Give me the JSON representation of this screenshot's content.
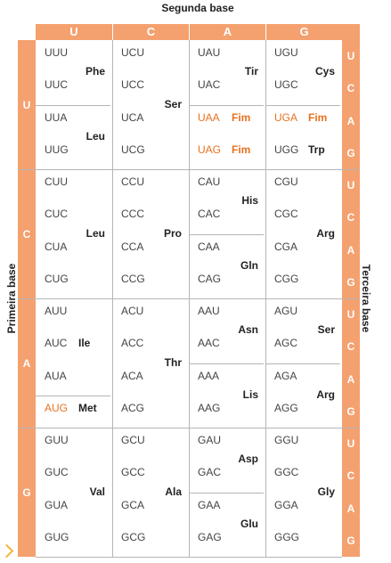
{
  "top_title": "Segunda base",
  "left_title": "Primeira base",
  "right_title": "Terceira base",
  "second_bases": [
    "U",
    "C",
    "A",
    "G"
  ],
  "first_bases": [
    "U",
    "C",
    "A",
    "G"
  ],
  "third_bases": [
    "U",
    "C",
    "A",
    "G"
  ],
  "blocks": [
    [
      {
        "codons": [
          "UUU",
          "UUC",
          "UUA",
          "UUG"
        ],
        "groups": [
          {
            "name": "Phe",
            "rows": [
              0,
              1
            ]
          },
          {
            "name": "Leu",
            "rows": [
              2,
              3
            ]
          }
        ]
      },
      {
        "codons": [
          "UCU",
          "UCC",
          "UCA",
          "UCG"
        ],
        "groups": [
          {
            "name": "Ser",
            "rows": [
              0,
              3
            ]
          }
        ]
      },
      {
        "codons": [
          "UAU",
          "UAC",
          "UAA",
          "UAG"
        ],
        "groups": [
          {
            "name": "Tir",
            "rows": [
              0,
              1
            ]
          },
          {
            "name": "Fim",
            "rows": [
              2,
              2
            ],
            "stop": true,
            "inline": true
          },
          {
            "name": "Fim",
            "rows": [
              3,
              3
            ],
            "stop": true,
            "inline": true
          }
        ]
      },
      {
        "codons": [
          "UGU",
          "UGC",
          "UGA",
          "UGG"
        ],
        "groups": [
          {
            "name": "Cys",
            "rows": [
              0,
              1
            ]
          },
          {
            "name": "Fim",
            "rows": [
              2,
              2
            ],
            "stop": true,
            "inline": true
          },
          {
            "name": "Trp",
            "rows": [
              3,
              3
            ],
            "inline": true
          }
        ]
      }
    ],
    [
      {
        "codons": [
          "CUU",
          "CUC",
          "CUA",
          "CUG"
        ],
        "groups": [
          {
            "name": "Leu",
            "rows": [
              0,
              3
            ]
          }
        ]
      },
      {
        "codons": [
          "CCU",
          "CCC",
          "CCA",
          "CCG"
        ],
        "groups": [
          {
            "name": "Pro",
            "rows": [
              0,
              3
            ]
          }
        ]
      },
      {
        "codons": [
          "CAU",
          "CAC",
          "CAA",
          "CAG"
        ],
        "groups": [
          {
            "name": "His",
            "rows": [
              0,
              1
            ]
          },
          {
            "name": "Gln",
            "rows": [
              2,
              3
            ]
          }
        ]
      },
      {
        "codons": [
          "CGU",
          "CGC",
          "CGA",
          "CGG"
        ],
        "groups": [
          {
            "name": "Arg",
            "rows": [
              0,
              3
            ]
          }
        ]
      }
    ],
    [
      {
        "codons": [
          "AUU",
          "AUC",
          "AUA",
          "AUG"
        ],
        "groups": [
          {
            "name": "Ile",
            "rows": [
              1,
              1
            ],
            "inline": true,
            "span": [
              0,
              2
            ]
          },
          {
            "name": "Met",
            "rows": [
              3,
              3
            ],
            "inline": true,
            "start": true
          }
        ]
      },
      {
        "codons": [
          "ACU",
          "ACC",
          "ACA",
          "ACG"
        ],
        "groups": [
          {
            "name": "Thr",
            "rows": [
              0,
              3
            ]
          }
        ]
      },
      {
        "codons": [
          "AAU",
          "AAC",
          "AAA",
          "AAG"
        ],
        "groups": [
          {
            "name": "Asn",
            "rows": [
              0,
              1
            ]
          },
          {
            "name": "Lis",
            "rows": [
              2,
              3
            ]
          }
        ]
      },
      {
        "codons": [
          "AGU",
          "AGC",
          "AGA",
          "AGG"
        ],
        "groups": [
          {
            "name": "Ser",
            "rows": [
              0,
              1
            ]
          },
          {
            "name": "Arg",
            "rows": [
              2,
              3
            ]
          }
        ]
      }
    ],
    [
      {
        "codons": [
          "GUU",
          "GUC",
          "GUA",
          "GUG"
        ],
        "groups": [
          {
            "name": "Val",
            "rows": [
              0,
              3
            ]
          }
        ]
      },
      {
        "codons": [
          "GCU",
          "GCC",
          "GCA",
          "GCG"
        ],
        "groups": [
          {
            "name": "Ala",
            "rows": [
              0,
              3
            ]
          }
        ]
      },
      {
        "codons": [
          "GAU",
          "GAC",
          "GAA",
          "GAG"
        ],
        "groups": [
          {
            "name": "Asp",
            "rows": [
              0,
              1
            ]
          },
          {
            "name": "Glu",
            "rows": [
              2,
              3
            ]
          }
        ]
      },
      {
        "codons": [
          "GGU",
          "GGC",
          "GGA",
          "GGG"
        ],
        "groups": [
          {
            "name": "Gly",
            "rows": [
              0,
              3
            ]
          }
        ]
      }
    ]
  ],
  "colors": {
    "header": "#f4a16f",
    "stop": "#e8711f",
    "grid": "#b5b5b5",
    "marker": "#f4b33a"
  }
}
